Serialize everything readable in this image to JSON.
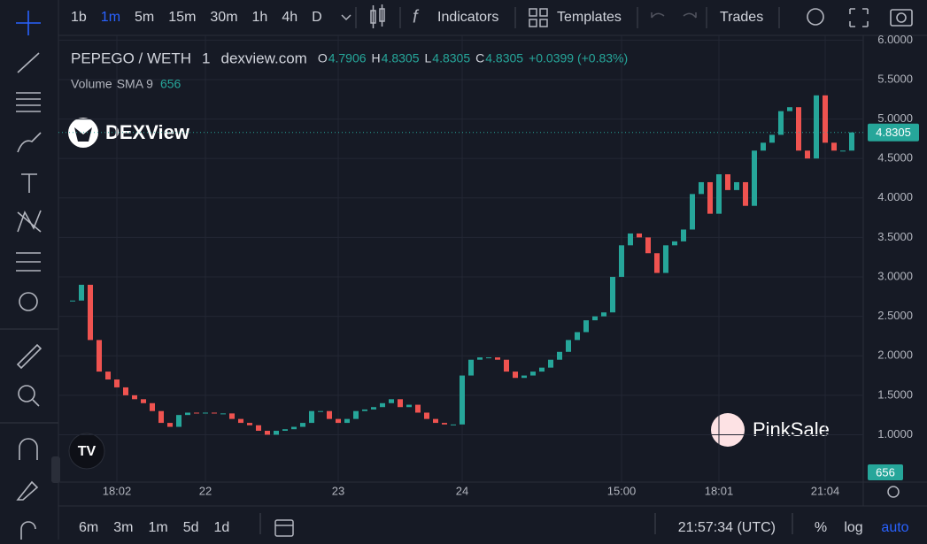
{
  "toolbar": {
    "intervals": [
      "1b",
      "1m",
      "5m",
      "15m",
      "30m",
      "1h",
      "4h",
      "D"
    ],
    "active_interval": 1,
    "indicators": "Indicators",
    "templates": "Templates",
    "trades": "Trades"
  },
  "legend": {
    "symbol": "PEPEGO / WETH",
    "interval": "1",
    "source": "dexview.com",
    "o_label": "O",
    "open": "4.7906",
    "h_label": "H",
    "high": "4.8305",
    "l_label": "L",
    "low": "4.8305",
    "c_label": "C",
    "close": "4.8305",
    "change": "+0.0399 (+0.83%)",
    "volume_label": "Volume",
    "volume_sma": "SMA 9",
    "volume_value": "656"
  },
  "watermarks": {
    "dexview": "DEXView",
    "pinksale": "PinkSale"
  },
  "chart_data": {
    "type": "candlestick",
    "categories": [
      null,
      null,
      null,
      null,
      null,
      "18:02",
      null,
      null,
      null,
      null,
      null,
      null,
      null,
      null,
      null,
      "22",
      null,
      null,
      null,
      null,
      null,
      null,
      null,
      null,
      null,
      null,
      null,
      null,
      null,
      null,
      "23",
      null,
      null,
      null,
      null,
      null,
      null,
      null,
      null,
      null,
      null,
      null,
      null,
      null,
      "24",
      null,
      null,
      null,
      null,
      null,
      null,
      null,
      null,
      null,
      null,
      null,
      null,
      null,
      null,
      null,
      null,
      null,
      "15:00",
      null,
      null,
      null,
      null,
      null,
      null,
      null,
      null,
      null,
      null,
      "18:01",
      null,
      null,
      null,
      null,
      null,
      null,
      null,
      null,
      null,
      null,
      null,
      "21:04",
      null,
      null,
      null
    ],
    "values": [
      2.7,
      2.9,
      2.2,
      1.8,
      1.7,
      1.6,
      1.5,
      1.45,
      1.4,
      1.3,
      1.15,
      1.1,
      1.25,
      1.28,
      1.27,
      1.28,
      1.27,
      1.27,
      1.2,
      1.15,
      1.12,
      1.05,
      1.0,
      1.05,
      1.07,
      1.1,
      1.15,
      1.3,
      1.3,
      1.2,
      1.15,
      1.2,
      1.3,
      1.32,
      1.35,
      1.4,
      1.45,
      1.35,
      1.38,
      1.28,
      1.2,
      1.15,
      1.13,
      1.13,
      1.75,
      1.95,
      1.98,
      1.98,
      1.95,
      1.8,
      1.72,
      1.75,
      1.8,
      1.85,
      1.95,
      2.05,
      2.2,
      2.3,
      2.45,
      2.5,
      2.55,
      3.0,
      3.4,
      3.55,
      3.5,
      3.3,
      3.05,
      3.4,
      3.45,
      3.6,
      4.05,
      4.2,
      3.8,
      4.3,
      4.1,
      4.2,
      3.9,
      4.6,
      4.7,
      4.8,
      5.1,
      5.15,
      4.6,
      4.5,
      5.3,
      4.7,
      4.6,
      4.6,
      4.8305
    ],
    "up_color": "#26a69a",
    "down_color": "#ef5350",
    "ylim": [
      0.4,
      6.06
    ],
    "yticks": [
      {
        "value": 1,
        "label": "1.0000"
      },
      {
        "value": 1.5,
        "label": "1.5000"
      },
      {
        "value": 2,
        "label": "2.0000"
      },
      {
        "value": 2.5,
        "label": "2.5000"
      },
      {
        "value": 3,
        "label": "3.0000"
      },
      {
        "value": 3.5,
        "label": "3.5000"
      },
      {
        "value": 4,
        "label": "4.0000"
      },
      {
        "value": 4.5,
        "label": "4.5000"
      },
      {
        "value": 5,
        "label": "5.0000"
      },
      {
        "value": 5.5,
        "label": "5.5000"
      },
      {
        "value": 6,
        "label": "6.0000"
      }
    ],
    "grid": true
  },
  "bottom_bar": {
    "ranges": [
      "6m",
      "3m",
      "1m",
      "5d",
      "1d"
    ],
    "time": "21:57:34 (UTC)",
    "percent": "%",
    "log": "log",
    "auto": "auto"
  }
}
